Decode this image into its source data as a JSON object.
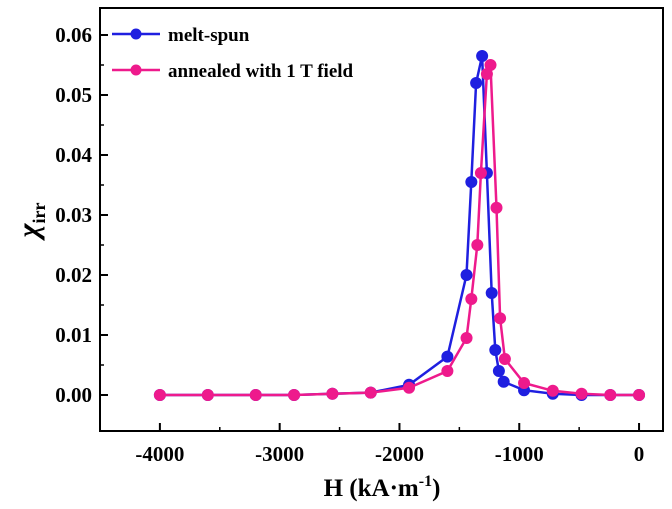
{
  "chart_data": {
    "type": "line",
    "xlabel": {
      "main": "H (kA·m",
      "sup": "-1",
      "close": ")"
    },
    "ylabel": {
      "main": "χ",
      "sub": "irr"
    },
    "xlim": [
      -4500,
      200
    ],
    "ylim": [
      -0.006,
      0.0645
    ],
    "xticks": [
      -4000,
      -3000,
      -2000,
      -1000,
      0
    ],
    "xtick_labels": [
      "-4000",
      "-3000",
      "-2000",
      "-1000",
      "0"
    ],
    "yticks": [
      0.0,
      0.01,
      0.02,
      0.03,
      0.04,
      0.05,
      0.06
    ],
    "ytick_labels": [
      "0.00",
      "0.01",
      "0.02",
      "0.03",
      "0.04",
      "0.05",
      "0.06"
    ],
    "legend_position": "top-left",
    "series": [
      {
        "name": "melt-spun",
        "color": "#1f1fe0",
        "points": [
          [
            -4000,
            0.0
          ],
          [
            -3600,
            0.0
          ],
          [
            -3200,
            0.0
          ],
          [
            -2880,
            0.0
          ],
          [
            -2560,
            0.0002
          ],
          [
            -2240,
            0.0004
          ],
          [
            -1920,
            0.0017
          ],
          [
            -1600,
            0.0064
          ],
          [
            -1440,
            0.02
          ],
          [
            -1400,
            0.0355
          ],
          [
            -1360,
            0.052
          ],
          [
            -1310,
            0.0565
          ],
          [
            -1270,
            0.037
          ],
          [
            -1230,
            0.017
          ],
          [
            -1200,
            0.0075
          ],
          [
            -1170,
            0.004
          ],
          [
            -1130,
            0.0022
          ],
          [
            -960,
            0.0008
          ],
          [
            -720,
            0.0002
          ],
          [
            -480,
            0.0
          ],
          [
            -240,
            0.0
          ],
          [
            0,
            0.0
          ]
        ]
      },
      {
        "name": "annealed with 1 T field",
        "color": "#ee1a8c",
        "points": [
          [
            -4000,
            0.0
          ],
          [
            -3600,
            0.0
          ],
          [
            -3200,
            0.0
          ],
          [
            -2880,
            0.0
          ],
          [
            -2560,
            0.0002
          ],
          [
            -2240,
            0.0004
          ],
          [
            -1920,
            0.0012
          ],
          [
            -1600,
            0.004
          ],
          [
            -1440,
            0.0095
          ],
          [
            -1400,
            0.016
          ],
          [
            -1350,
            0.025
          ],
          [
            -1320,
            0.037
          ],
          [
            -1270,
            0.0535
          ],
          [
            -1240,
            0.055
          ],
          [
            -1190,
            0.0312
          ],
          [
            -1160,
            0.0128
          ],
          [
            -1120,
            0.006
          ],
          [
            -960,
            0.002
          ],
          [
            -720,
            0.0007
          ],
          [
            -480,
            0.0002
          ],
          [
            -240,
            0.0
          ],
          [
            0,
            0.0
          ]
        ]
      }
    ]
  }
}
